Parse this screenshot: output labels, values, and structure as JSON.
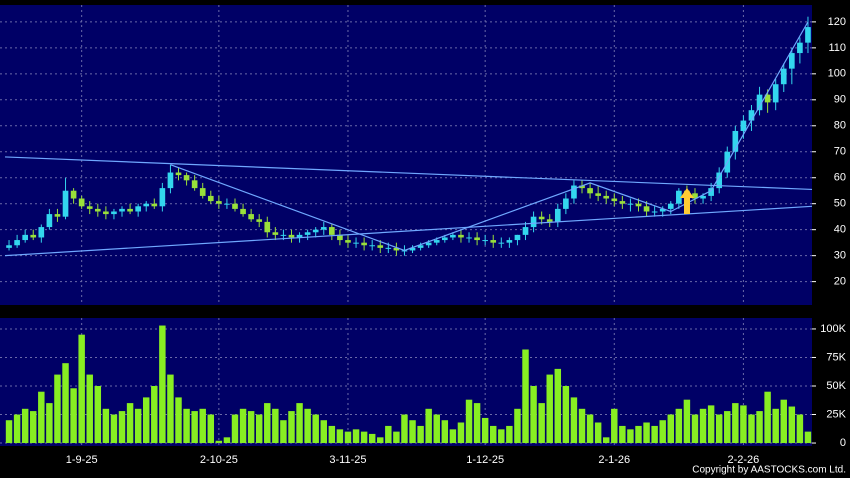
{
  "chart_data": [
    {
      "type": "candlestick",
      "open": [
        33,
        34,
        36,
        38,
        37,
        41,
        46,
        45,
        55,
        52,
        49,
        48,
        47,
        46,
        47,
        48,
        47,
        49,
        50,
        49,
        56,
        62,
        61,
        59,
        56,
        53,
        51,
        50,
        50,
        48,
        46,
        44,
        43,
        39,
        38,
        38,
        37,
        38,
        39,
        40,
        41,
        38,
        36,
        35,
        35,
        34,
        34,
        33,
        33,
        32,
        32,
        33,
        34,
        35,
        36,
        37,
        38,
        37,
        37,
        36,
        36,
        35,
        35,
        36,
        38,
        41,
        45,
        44,
        43,
        48,
        52,
        57,
        56,
        54,
        53,
        52,
        51,
        50,
        50,
        49,
        47,
        47,
        48,
        50,
        55,
        54,
        52,
        53,
        56,
        62,
        70,
        78,
        82,
        86,
        92,
        89,
        96,
        102,
        108,
        112
      ],
      "high": [
        36,
        38,
        40,
        40,
        42,
        48,
        48,
        60,
        56,
        53,
        51,
        50,
        49,
        48,
        49,
        50,
        50,
        51,
        52,
        58,
        65,
        64,
        62,
        61,
        58,
        55,
        53,
        52,
        52,
        50,
        48,
        46,
        45,
        41,
        40,
        40,
        39,
        40,
        41,
        43,
        42,
        40,
        38,
        37,
        37,
        36,
        36,
        35,
        35,
        34,
        34,
        35,
        36,
        37,
        38,
        39,
        40,
        39,
        39,
        38,
        38,
        37,
        37,
        38,
        43,
        47,
        47,
        46,
        50,
        54,
        59,
        59,
        58,
        57,
        55,
        54,
        53,
        52,
        52,
        51,
        49,
        49,
        51,
        56,
        57,
        56,
        54,
        58,
        64,
        72,
        80,
        84,
        88,
        95,
        94,
        98,
        104,
        110,
        114,
        122
      ],
      "low": [
        32,
        33,
        35,
        36,
        35,
        40,
        43,
        44,
        50,
        48,
        46,
        45,
        44,
        44,
        45,
        46,
        45,
        47,
        48,
        47,
        54,
        59,
        57,
        55,
        52,
        50,
        48,
        48,
        47,
        45,
        43,
        41,
        37,
        36,
        36,
        35,
        35,
        36,
        37,
        38,
        36,
        34,
        33,
        33,
        32,
        32,
        31,
        31,
        30,
        30,
        31,
        32,
        33,
        34,
        35,
        36,
        35,
        35,
        34,
        34,
        33,
        33,
        33,
        34,
        36,
        39,
        42,
        41,
        41,
        46,
        50,
        54,
        52,
        51,
        50,
        49,
        48,
        47,
        47,
        45,
        45,
        45,
        46,
        48,
        52,
        50,
        50,
        51,
        54,
        60,
        67,
        75,
        78,
        84,
        85,
        86,
        93,
        96,
        104,
        108
      ],
      "close": [
        34,
        36,
        38,
        37,
        41,
        46,
        45,
        55,
        52,
        49,
        48,
        47,
        46,
        47,
        48,
        47,
        49,
        50,
        49,
        56,
        62,
        61,
        59,
        56,
        53,
        51,
        50,
        50,
        48,
        46,
        44,
        43,
        39,
        38,
        38,
        37,
        38,
        39,
        40,
        41,
        38,
        36,
        35,
        35,
        34,
        34,
        33,
        33,
        32,
        32,
        33,
        34,
        35,
        36,
        37,
        38,
        37,
        37,
        36,
        36,
        35,
        35,
        36,
        38,
        41,
        45,
        44,
        43,
        48,
        52,
        57,
        56,
        54,
        53,
        52,
        51,
        50,
        50,
        49,
        47,
        47,
        48,
        50,
        55,
        54,
        52,
        53,
        56,
        62,
        70,
        78,
        82,
        86,
        92,
        89,
        96,
        102,
        108,
        112,
        118
      ],
      "up_color": "#33d6ee",
      "down_color": "#99e03a",
      "ylim": [
        11,
        126.5
      ],
      "yticks": [
        20,
        30,
        40,
        50,
        60,
        70,
        80,
        90,
        100,
        110,
        120
      ],
      "grid": true,
      "trendlines": {
        "color": "#6fa8ff",
        "lines": [
          {
            "x": [
              -0.5,
              99.5
            ],
            "y": [
              68,
              55.5
            ]
          },
          {
            "x": [
              -0.5,
              99.5
            ],
            "y": [
              30,
              49
            ]
          },
          {
            "x": [
              20,
              49,
              72,
              82,
              87,
              99
            ],
            "y": [
              65,
              32,
              58,
              47,
              55,
              120
            ]
          }
        ]
      }
    },
    {
      "type": "bar",
      "categories": [
        null,
        null,
        null,
        null,
        null,
        null,
        null,
        null,
        null,
        "1-9-25",
        null,
        null,
        null,
        null,
        null,
        null,
        null,
        null,
        null,
        null,
        null,
        null,
        null,
        null,
        null,
        null,
        "2-10-25",
        null,
        null,
        null,
        null,
        null,
        null,
        null,
        null,
        null,
        null,
        null,
        null,
        null,
        null,
        null,
        "3-11-25",
        null,
        null,
        null,
        null,
        null,
        null,
        null,
        null,
        null,
        null,
        null,
        null,
        null,
        null,
        null,
        null,
        "1-12-25",
        null,
        null,
        null,
        null,
        null,
        null,
        null,
        null,
        null,
        null,
        null,
        null,
        null,
        null,
        null,
        "2-1-26",
        null,
        null,
        null,
        null,
        null,
        null,
        null,
        null,
        null,
        null,
        null,
        null,
        null,
        null,
        null,
        "2-2-26",
        null,
        null,
        null,
        null,
        null,
        null,
        null,
        null
      ],
      "values": [
        20000,
        25000,
        30000,
        28000,
        45000,
        35000,
        60000,
        70000,
        48000,
        95000,
        60000,
        50000,
        30000,
        25000,
        28000,
        35000,
        30000,
        40000,
        50000,
        103000,
        60000,
        40000,
        30000,
        28000,
        30000,
        25000,
        2000,
        5000,
        25000,
        30000,
        28000,
        25000,
        35000,
        30000,
        20000,
        28000,
        35000,
        30000,
        25000,
        20000,
        15000,
        12000,
        10000,
        12000,
        10000,
        8000,
        5000,
        15000,
        10000,
        25000,
        20000,
        15000,
        30000,
        25000,
        20000,
        12000,
        18000,
        38000,
        35000,
        22000,
        15000,
        12000,
        15000,
        30000,
        82000,
        50000,
        35000,
        60000,
        65000,
        50000,
        40000,
        30000,
        25000,
        18000,
        5000,
        30000,
        15000,
        12000,
        15000,
        18000,
        15000,
        20000,
        25000,
        30000,
        38000,
        25000,
        30000,
        33000,
        25000,
        28000,
        35000,
        33000,
        25000,
        28000,
        45000,
        30000,
        38000,
        32000,
        25000,
        10000
      ],
      "color": "#88ee22",
      "ylim": [
        -2600,
        109600
      ],
      "yticks": [
        {
          "value": 0,
          "label": "0"
        },
        {
          "value": 25000,
          "label": "25K"
        },
        {
          "value": 50000,
          "label": "50K"
        },
        {
          "value": 75000,
          "label": "75K"
        },
        {
          "value": 100000,
          "label": "100K"
        }
      ],
      "grid": true
    }
  ],
  "copyright": "Copyright by AASTOCKS.com Ltd."
}
